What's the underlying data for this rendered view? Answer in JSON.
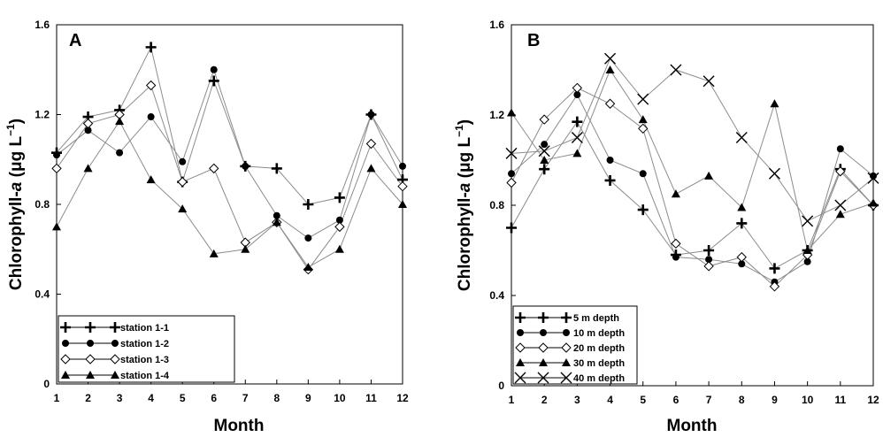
{
  "chart_data": [
    {
      "type": "line",
      "panel_label": "A",
      "xlabel": "Month",
      "ylabel": "Chlorophyll-a (μg L⁻¹)",
      "ylabel_parts": {
        "pre": "Chlorophyll-",
        "italic": "a",
        "mid": " (μg L",
        "sup": "−1",
        "post": ")"
      },
      "xlim": [
        1,
        12
      ],
      "ylim": [
        0,
        1.6
      ],
      "x_ticks": [
        1,
        2,
        3,
        4,
        5,
        6,
        7,
        8,
        9,
        10,
        11,
        12
      ],
      "y_ticks": [
        0,
        0.4,
        0.8,
        1.2,
        1.6
      ],
      "y_tick_labels": [
        "0",
        "0.4",
        "0.8",
        "1.2",
        "1.6"
      ],
      "grid": false,
      "legend_position": "bottom-left",
      "x": [
        1,
        2,
        3,
        4,
        5,
        6,
        7,
        8,
        9,
        10,
        11,
        12
      ],
      "series": [
        {
          "name": "station 1-1",
          "marker": "plus",
          "values": [
            1.03,
            1.19,
            1.22,
            1.5,
            0.9,
            1.35,
            0.97,
            0.96,
            0.8,
            0.83,
            1.2,
            0.91
          ]
        },
        {
          "name": "station 1-2",
          "marker": "circle",
          "values": [
            1.02,
            1.13,
            1.03,
            1.19,
            0.99,
            1.4,
            0.97,
            0.75,
            0.65,
            0.73,
            1.2,
            0.97
          ]
        },
        {
          "name": "station 1-3",
          "marker": "diamond",
          "values": [
            0.96,
            1.16,
            1.2,
            1.33,
            0.9,
            0.96,
            0.63,
            0.72,
            0.51,
            0.7,
            1.07,
            0.88
          ]
        },
        {
          "name": "station 1-4",
          "marker": "triangle",
          "values": [
            0.7,
            0.96,
            1.17,
            0.91,
            0.78,
            0.58,
            0.6,
            0.72,
            0.52,
            0.6,
            0.96,
            0.8
          ]
        }
      ]
    },
    {
      "type": "line",
      "panel_label": "B",
      "xlabel": "Month",
      "ylabel": "Chlorophyll-a (μg L⁻¹)",
      "ylabel_parts": {
        "pre": "Chlorophyll-",
        "italic": "a",
        "mid": " (μg L",
        "sup": "−1",
        "post": ")"
      },
      "xlim": [
        1,
        12
      ],
      "ylim": [
        0,
        1.6
      ],
      "x_ticks": [
        1,
        2,
        3,
        4,
        5,
        6,
        7,
        8,
        9,
        10,
        11,
        12
      ],
      "y_ticks": [
        0,
        0.4,
        0.8,
        1.2,
        1.6
      ],
      "y_tick_labels": [
        "0",
        "0.4",
        "0.8",
        "1.2",
        "1.6"
      ],
      "grid": false,
      "legend_position": "bottom-left",
      "x": [
        1,
        2,
        3,
        4,
        5,
        6,
        7,
        8,
        9,
        10,
        11,
        12
      ],
      "series": [
        {
          "name": "5 m depth",
          "marker": "plus",
          "values": [
            0.7,
            0.96,
            1.17,
            0.91,
            0.78,
            0.58,
            0.6,
            0.72,
            0.52,
            0.6,
            0.96,
            0.8
          ]
        },
        {
          "name": "10 m depth",
          "marker": "circle",
          "values": [
            0.94,
            1.07,
            1.29,
            1.0,
            0.94,
            0.57,
            0.56,
            0.54,
            0.46,
            0.55,
            1.05,
            0.93
          ]
        },
        {
          "name": "20 m depth",
          "marker": "diamond",
          "values": [
            0.9,
            1.18,
            1.32,
            1.25,
            1.14,
            0.63,
            0.53,
            0.57,
            0.44,
            0.58,
            0.95,
            0.8
          ]
        },
        {
          "name": "30 m depth",
          "marker": "triangle",
          "values": [
            1.21,
            1.0,
            1.03,
            1.4,
            1.18,
            0.85,
            0.93,
            0.79,
            1.25,
            0.6,
            0.76,
            0.81
          ]
        },
        {
          "name": "40 m depth",
          "marker": "x",
          "values": [
            1.03,
            1.04,
            1.1,
            1.45,
            1.27,
            1.4,
            1.35,
            1.1,
            0.94,
            0.73,
            0.8,
            0.92
          ]
        }
      ]
    }
  ]
}
